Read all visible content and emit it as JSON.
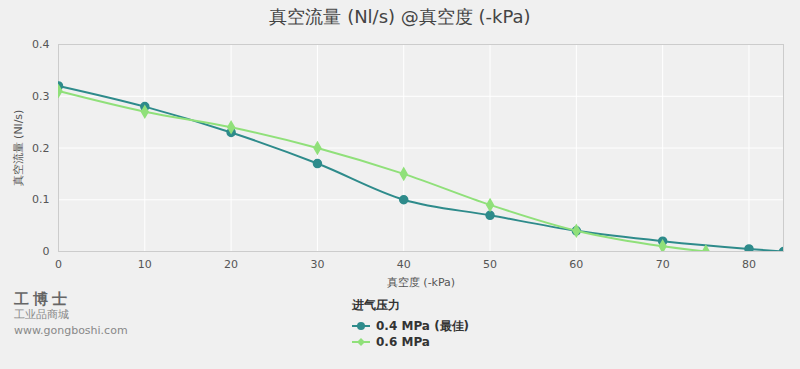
{
  "chart_data": {
    "type": "line",
    "title": "真空流量 (Nl/s) @真空度 (-kPa)",
    "x_label": "真空度 (-kPa)",
    "y_label": "真空流量 (Nl/s)",
    "xlim": [
      0,
      84
    ],
    "xticks": [
      0,
      10,
      20,
      30,
      40,
      50,
      60,
      70,
      80
    ],
    "ylim": [
      0,
      0.4
    ],
    "yticks": [
      0,
      0.1,
      0.2,
      0.3,
      0.4
    ],
    "grid": true,
    "legend": "bottom",
    "legend_title": "进气压力",
    "series": [
      {
        "name": "0.4 MPa (最佳)",
        "color": "#2e8b8b",
        "marker": "circle",
        "x": [
          0,
          10,
          20,
          30,
          40,
          50,
          60,
          70,
          80,
          84
        ],
        "values": [
          0.32,
          0.28,
          0.23,
          0.17,
          0.1,
          0.07,
          0.04,
          0.02,
          0.005,
          0
        ]
      },
      {
        "name": "0.6 MPa",
        "color": "#90e07a",
        "marker": "diamond",
        "x": [
          0,
          10,
          20,
          30,
          40,
          50,
          60,
          70,
          75
        ],
        "values": [
          0.31,
          0.27,
          0.24,
          0.2,
          0.15,
          0.09,
          0.04,
          0.01,
          0
        ]
      }
    ],
    "watermark": [
      "工博士",
      "工业品商城",
      "www.gongboshi.com"
    ]
  }
}
